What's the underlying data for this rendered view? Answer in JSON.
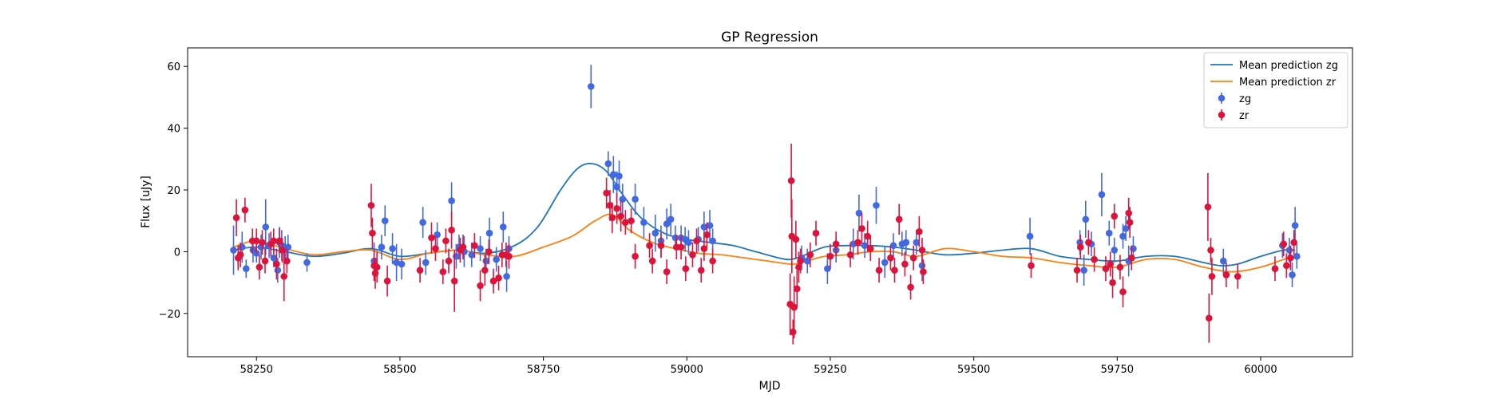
{
  "chart_data": {
    "type": "scatter",
    "title": "GP Regression",
    "xlabel": "MJD",
    "ylabel": "Flux [uJy]",
    "xlim": [
      58130,
      60160
    ],
    "ylim": [
      -34,
      66
    ],
    "xticks": [
      58250,
      58500,
      58750,
      59000,
      59250,
      59500,
      59750,
      60000
    ],
    "yticks": [
      -20,
      0,
      20,
      40,
      60
    ],
    "grid": false,
    "legend_position": "top-right",
    "lines": [
      {
        "name": "Mean prediction zg",
        "color": "#1f77b4",
        "x": [
          58210,
          58250,
          58300,
          58350,
          58400,
          58450,
          58500,
          58550,
          58600,
          58650,
          58700,
          58740,
          58780,
          58810,
          58835,
          58860,
          58890,
          58920,
          58960,
          59000,
          59040,
          59080,
          59120,
          59160,
          59180,
          59200,
          59240,
          59280,
          59320,
          59360,
          59400,
          59450,
          59500,
          59550,
          59600,
          59650,
          59700,
          59750,
          59800,
          59850,
          59900,
          59930,
          59960,
          60000,
          60040,
          60060
        ],
        "y": [
          0.5,
          1.5,
          0,
          -1.5,
          -0.5,
          1.0,
          -1.5,
          -0.5,
          0.5,
          -0.5,
          2.0,
          8,
          20,
          27,
          28.5,
          26,
          18,
          11,
          6,
          4,
          3,
          2,
          0,
          -2,
          -2.5,
          -1.5,
          1.5,
          2.0,
          2.0,
          1.5,
          0.5,
          -1.0,
          -0.5,
          0.5,
          1.0,
          -1.5,
          -2.5,
          -3,
          -1.5,
          -1.5,
          -3.5,
          -4.5,
          -4,
          -1.5,
          0.5,
          0.5
        ]
      },
      {
        "name": "Mean prediction zr",
        "color": "#ff7f0e",
        "x": [
          58210,
          58250,
          58300,
          58350,
          58400,
          58450,
          58500,
          58550,
          58600,
          58650,
          58700,
          58750,
          58800,
          58840,
          58870,
          58900,
          58940,
          58980,
          59020,
          59060,
          59100,
          59140,
          59180,
          59200,
          59240,
          59280,
          59320,
          59360,
          59400,
          59450,
          59500,
          59550,
          59600,
          59650,
          59700,
          59750,
          59800,
          59850,
          59900,
          59950,
          60000,
          60040,
          60060
        ],
        "y": [
          1.5,
          3.5,
          1,
          -1,
          0,
          0.5,
          -2.5,
          -0.5,
          0.5,
          -1.0,
          -1.5,
          1.5,
          5,
          10,
          12,
          7,
          3,
          1,
          -0.5,
          -1,
          -2,
          -3,
          -4,
          -3.5,
          -1.5,
          -1.0,
          0,
          0,
          -1.5,
          1.0,
          0,
          -1.5,
          -2,
          -3.5,
          -4.5,
          -5,
          -2.5,
          -2.5,
          -5,
          -6.5,
          -5,
          -2.5,
          -1.5
        ]
      }
    ],
    "series": [
      {
        "name": "zg",
        "color": "#4169e1",
        "points": [
          [
            58210,
            0.5,
            8
          ],
          [
            58225,
            1.5,
            5
          ],
          [
            58232,
            -5.5,
            3
          ],
          [
            58244,
            0.5,
            4
          ],
          [
            58250,
            -0.5,
            3
          ],
          [
            58258,
            1.5,
            4
          ],
          [
            58266,
            8,
            9
          ],
          [
            58272,
            2,
            4
          ],
          [
            58280,
            -2,
            3
          ],
          [
            58287,
            -6,
            4
          ],
          [
            58290,
            3,
            5
          ],
          [
            58294,
            2,
            5
          ],
          [
            58300,
            1,
            4
          ],
          [
            58305,
            1.5,
            4
          ],
          [
            58338,
            -3.5,
            3
          ],
          [
            58455,
            -3,
            6
          ],
          [
            58468,
            1.5,
            4
          ],
          [
            58474,
            10,
            5
          ],
          [
            58487,
            1,
            5
          ],
          [
            58494,
            -3.5,
            6
          ],
          [
            58503,
            -4,
            5
          ],
          [
            58540,
            9.5,
            5
          ],
          [
            58545,
            -3.5,
            4
          ],
          [
            58565,
            5.5,
            4
          ],
          [
            58590,
            16.5,
            6
          ],
          [
            58598,
            -1.5,
            4
          ],
          [
            58603,
            1.5,
            4
          ],
          [
            58612,
            0,
            5
          ],
          [
            58625,
            -1,
            4
          ],
          [
            58640,
            1,
            4
          ],
          [
            58650,
            -3,
            4
          ],
          [
            58656,
            6,
            5
          ],
          [
            58668,
            -2.5,
            4
          ],
          [
            58680,
            8,
            5
          ],
          [
            58686,
            -8,
            5
          ],
          [
            58690,
            1,
            4
          ],
          [
            58833,
            53.5,
            7
          ],
          [
            58863,
            28.5,
            4
          ],
          [
            58872,
            25,
            6
          ],
          [
            58878,
            21,
            5
          ],
          [
            58882,
            24.5,
            5
          ],
          [
            58888,
            17,
            5
          ],
          [
            58910,
            17,
            5
          ],
          [
            58925,
            9.5,
            5
          ],
          [
            58945,
            6,
            6
          ],
          [
            58955,
            3.5,
            5
          ],
          [
            58965,
            9,
            5
          ],
          [
            58972,
            10.5,
            5
          ],
          [
            58980,
            4.5,
            4
          ],
          [
            58990,
            4.5,
            4
          ],
          [
            58997,
            4,
            4
          ],
          [
            59003,
            3,
            4
          ],
          [
            59020,
            4,
            4
          ],
          [
            59030,
            8,
            5
          ],
          [
            59040,
            8.5,
            5
          ],
          [
            59045,
            3.5,
            4
          ],
          [
            59200,
            -2,
            4
          ],
          [
            59210,
            -3,
            4
          ],
          [
            59245,
            -5.5,
            5
          ],
          [
            59260,
            0.5,
            4
          ],
          [
            59290,
            2.5,
            5
          ],
          [
            59300,
            12.5,
            6
          ],
          [
            59310,
            2,
            4
          ],
          [
            59330,
            15,
            6
          ],
          [
            59345,
            -3.5,
            5
          ],
          [
            59360,
            2,
            4
          ],
          [
            59375,
            2.5,
            4
          ],
          [
            59382,
            3,
            4
          ],
          [
            59400,
            3,
            4
          ],
          [
            59410,
            -4.5,
            5
          ],
          [
            59598,
            5,
            6
          ],
          [
            59685,
            3,
            4
          ],
          [
            59692,
            -6,
            5
          ],
          [
            59695,
            10.5,
            6
          ],
          [
            59705,
            2.5,
            4
          ],
          [
            59723,
            18.5,
            7
          ],
          [
            59736,
            6,
            4
          ],
          [
            59745,
            0.5,
            4
          ],
          [
            59760,
            5,
            4
          ],
          [
            59765,
            7.5,
            4
          ],
          [
            59770,
            -3,
            5
          ],
          [
            59778,
            1,
            4
          ],
          [
            59935,
            -3,
            4
          ],
          [
            60038,
            2,
            4
          ],
          [
            60050,
            0.5,
            4
          ],
          [
            60055,
            -7.5,
            4
          ],
          [
            60060,
            8.5,
            6
          ],
          [
            60063,
            -1.5,
            4
          ]
        ]
      },
      {
        "name": "zr",
        "color": "#dc143c",
        "points": [
          [
            58215,
            11,
            6
          ],
          [
            58218,
            -2,
            4
          ],
          [
            58222,
            -1,
            4
          ],
          [
            58230,
            13.5,
            4
          ],
          [
            58243,
            3.5,
            4
          ],
          [
            58250,
            3.5,
            4
          ],
          [
            58255,
            -5,
            4
          ],
          [
            58260,
            3,
            4
          ],
          [
            58265,
            -3,
            4
          ],
          [
            58275,
            2.5,
            4
          ],
          [
            58280,
            3.5,
            4
          ],
          [
            58285,
            -4,
            5
          ],
          [
            58290,
            3.5,
            4
          ],
          [
            58295,
            0.5,
            4
          ],
          [
            58298,
            -8,
            8
          ],
          [
            58303,
            -3,
            4
          ],
          [
            58450,
            15,
            7
          ],
          [
            58452,
            6,
            5
          ],
          [
            58455,
            -4.5,
            5
          ],
          [
            58457,
            -7,
            5
          ],
          [
            58460,
            -5,
            5
          ],
          [
            58478,
            -9.5,
            5
          ],
          [
            58535,
            -6,
            4
          ],
          [
            58555,
            4.5,
            5
          ],
          [
            58562,
            1,
            4
          ],
          [
            58575,
            -6.5,
            4
          ],
          [
            58580,
            3.5,
            4
          ],
          [
            58585,
            -3,
            4
          ],
          [
            58590,
            7,
            6
          ],
          [
            58595,
            -9.5,
            10
          ],
          [
            58605,
            0.5,
            4
          ],
          [
            58610,
            1.5,
            4
          ],
          [
            58630,
            2,
            4
          ],
          [
            58640,
            -11,
            5
          ],
          [
            58648,
            -6,
            5
          ],
          [
            58655,
            0,
            4
          ],
          [
            58663,
            -9.5,
            4
          ],
          [
            58672,
            -8.5,
            4
          ],
          [
            58678,
            -1,
            4
          ],
          [
            58685,
            -1,
            4
          ],
          [
            58690,
            -1.5,
            4
          ],
          [
            58860,
            19,
            5
          ],
          [
            58866,
            15,
            5
          ],
          [
            58870,
            11,
            5
          ],
          [
            58878,
            14,
            5
          ],
          [
            58885,
            11.5,
            5
          ],
          [
            58893,
            9.5,
            4
          ],
          [
            58903,
            10,
            4
          ],
          [
            58910,
            -1.5,
            4
          ],
          [
            58935,
            2,
            4
          ],
          [
            58940,
            -3,
            4
          ],
          [
            58955,
            2,
            4
          ],
          [
            58965,
            -6.5,
            4
          ],
          [
            58982,
            1.5,
            4
          ],
          [
            58990,
            1.5,
            4
          ],
          [
            58998,
            -5.5,
            4
          ],
          [
            59010,
            -1,
            4
          ],
          [
            59017,
            3.5,
            4
          ],
          [
            59025,
            -6,
            4
          ],
          [
            59030,
            1,
            4
          ],
          [
            59035,
            5.5,
            4
          ],
          [
            59045,
            -3,
            4
          ],
          [
            59180,
            -17,
            10
          ],
          [
            59182,
            23,
            12
          ],
          [
            59183,
            5,
            12
          ],
          [
            59185,
            -26,
            4
          ],
          [
            59187,
            -18,
            10
          ],
          [
            59190,
            4,
            6
          ],
          [
            59192,
            -12,
            6
          ],
          [
            59195,
            -5,
            5
          ],
          [
            59198,
            -3,
            4
          ],
          [
            59215,
            -1,
            4
          ],
          [
            59225,
            6,
            4
          ],
          [
            59250,
            -1.5,
            4
          ],
          [
            59260,
            2.5,
            4
          ],
          [
            59285,
            -1,
            4
          ],
          [
            59298,
            3,
            4
          ],
          [
            59305,
            7.5,
            5
          ],
          [
            59315,
            5,
            5
          ],
          [
            59320,
            1,
            4
          ],
          [
            59335,
            -6,
            4
          ],
          [
            59355,
            -2,
            4
          ],
          [
            59362,
            -6,
            4
          ],
          [
            59370,
            10.5,
            5
          ],
          [
            59380,
            -4,
            4
          ],
          [
            59390,
            -11.5,
            4
          ],
          [
            59395,
            -2,
            4
          ],
          [
            59405,
            6.5,
            5
          ],
          [
            59410,
            0.5,
            4
          ],
          [
            59412,
            -6.5,
            4
          ],
          [
            59600,
            -4.5,
            4
          ],
          [
            59680,
            -6,
            4
          ],
          [
            59686,
            1.5,
            4
          ],
          [
            59700,
            3,
            4
          ],
          [
            59710,
            -2.5,
            4
          ],
          [
            59730,
            -5.5,
            4
          ],
          [
            59738,
            -4,
            4
          ],
          [
            59742,
            -10,
            5
          ],
          [
            59745,
            11.5,
            4
          ],
          [
            59755,
            -5,
            4
          ],
          [
            59760,
            -13,
            5
          ],
          [
            59770,
            12.5,
            5
          ],
          [
            59772,
            9.5,
            5
          ],
          [
            59775,
            -2,
            4
          ],
          [
            59908,
            14.5,
            11
          ],
          [
            59910,
            -21.5,
            8
          ],
          [
            59913,
            0.5,
            4
          ],
          [
            59915,
            -8,
            6
          ],
          [
            59940,
            -7.5,
            4
          ],
          [
            59960,
            -8,
            4
          ],
          [
            60025,
            -5.5,
            4
          ],
          [
            60040,
            2.5,
            4
          ],
          [
            60045,
            -4.5,
            4
          ],
          [
            60052,
            -2,
            4
          ],
          [
            60058,
            3,
            4
          ]
        ]
      }
    ]
  }
}
